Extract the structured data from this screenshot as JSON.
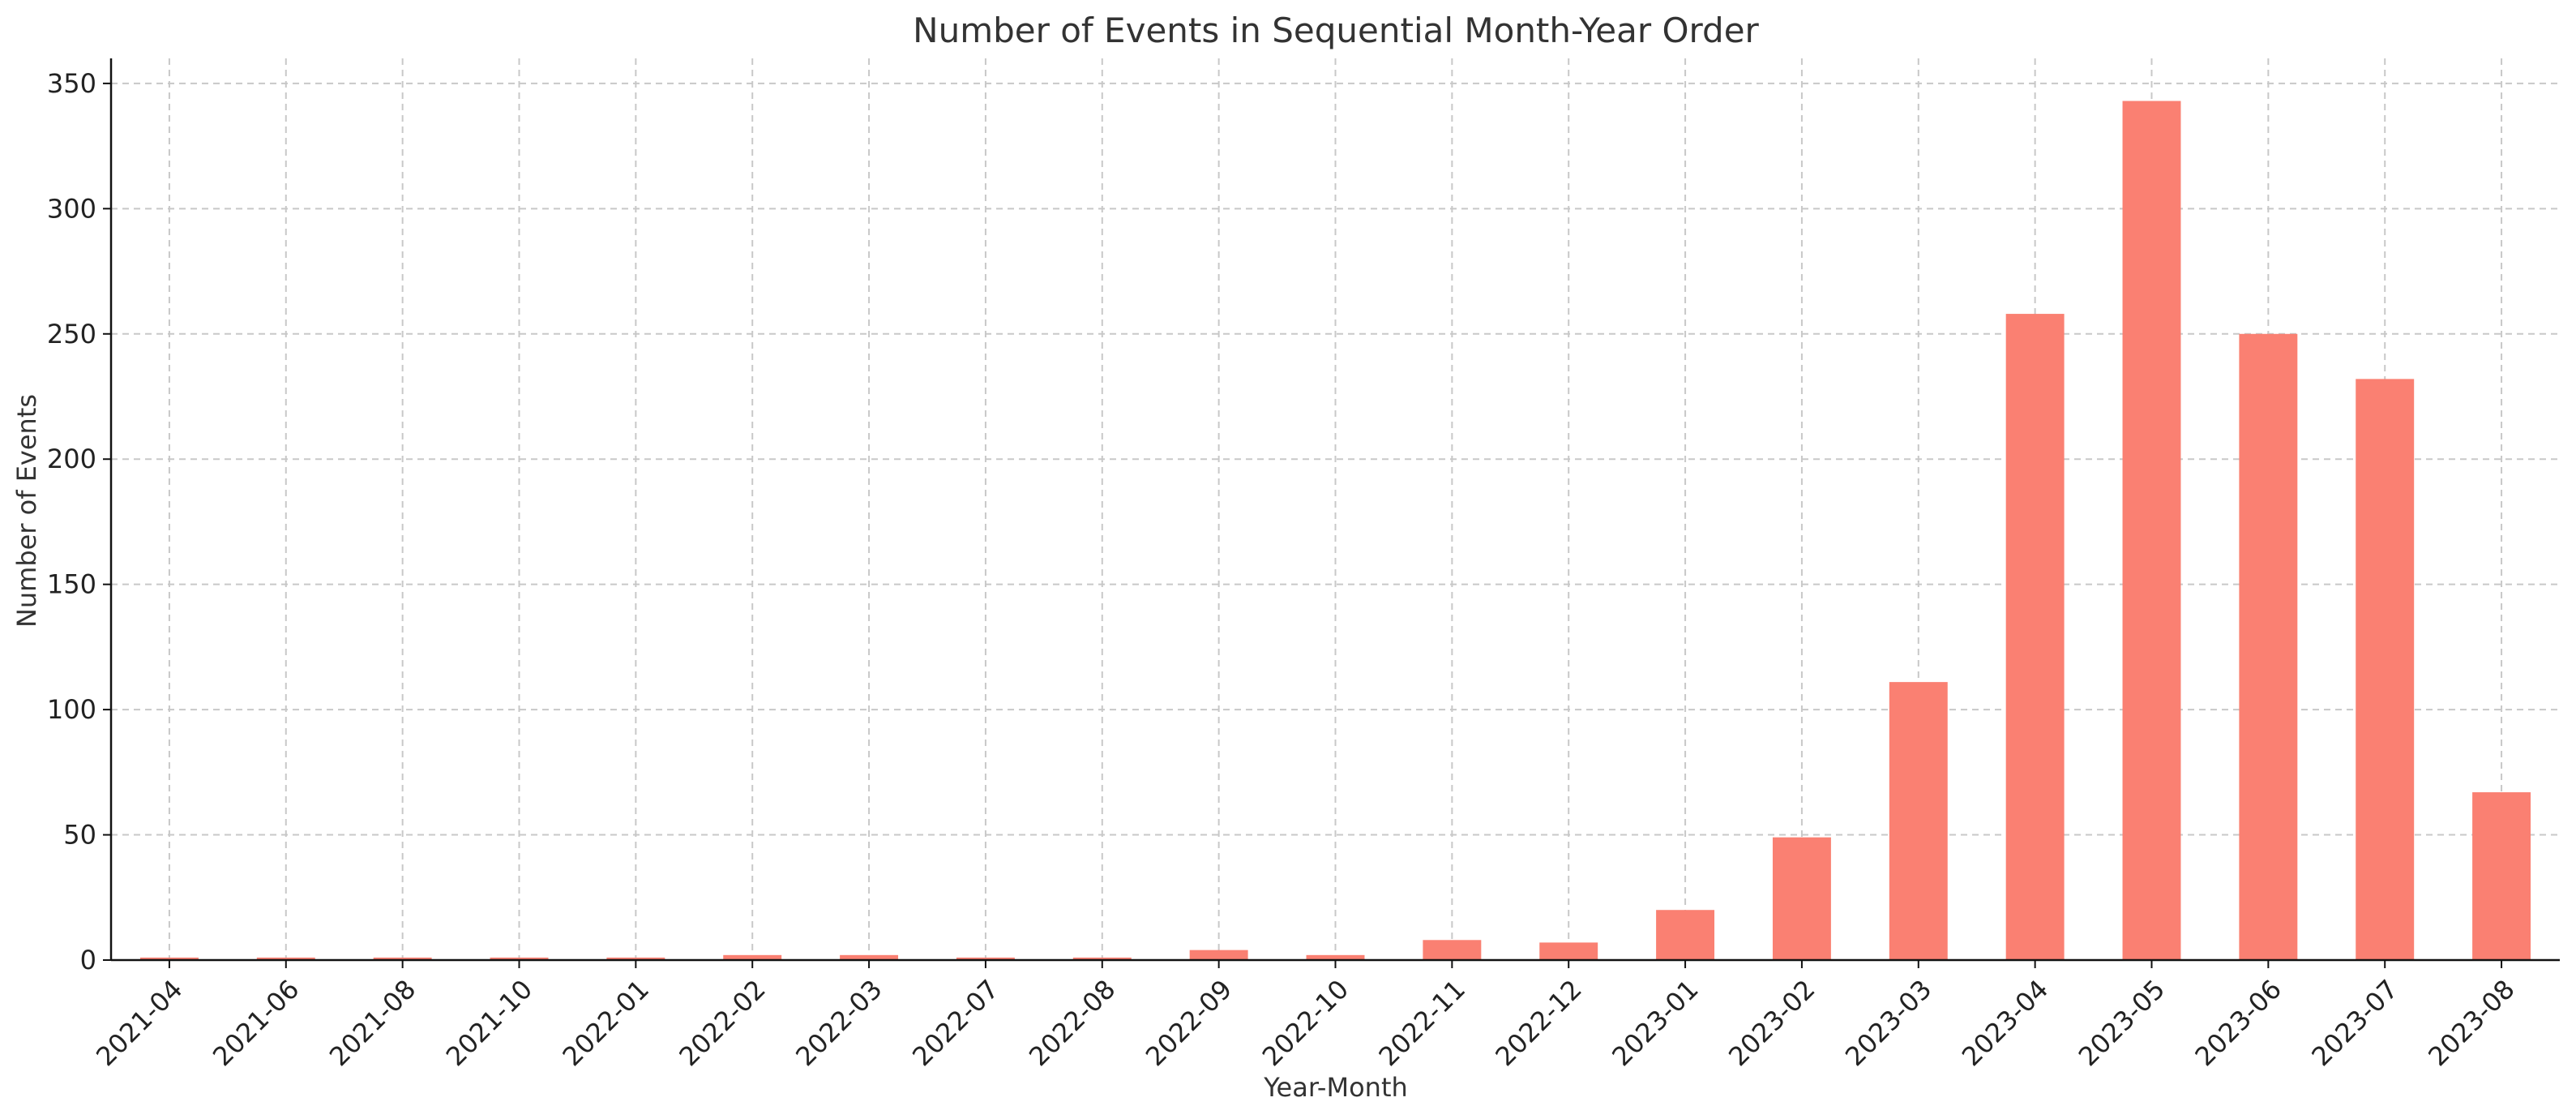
{
  "chart_data": {
    "type": "bar",
    "title": "Number of Events in Sequential Month-Year Order",
    "xlabel": "Year-Month",
    "ylabel": "Number of Events",
    "categories": [
      "2021-04",
      "2021-06",
      "2021-08",
      "2021-10",
      "2022-01",
      "2022-02",
      "2022-03",
      "2022-07",
      "2022-08",
      "2022-09",
      "2022-10",
      "2022-11",
      "2022-12",
      "2023-01",
      "2023-02",
      "2023-03",
      "2023-04",
      "2023-05",
      "2023-06",
      "2023-07",
      "2023-08"
    ],
    "values": [
      1,
      1,
      1,
      1,
      1,
      2,
      2,
      1,
      1,
      4,
      2,
      8,
      7,
      20,
      49,
      111,
      258,
      343,
      250,
      232,
      67
    ],
    "ylim": [
      0,
      360
    ],
    "yticks": [
      0,
      50,
      100,
      150,
      200,
      250,
      300,
      350
    ],
    "bar_color": "#FA8072",
    "grid": true
  }
}
